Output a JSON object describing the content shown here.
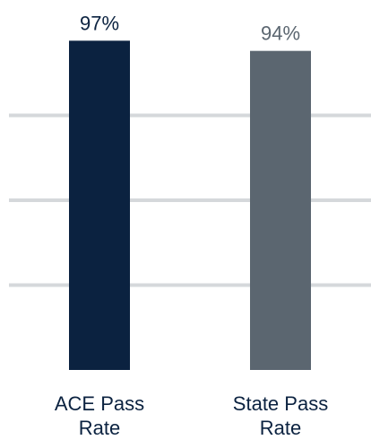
{
  "chart_data": {
    "type": "bar",
    "categories": [
      "ACE Pass Rate",
      "State Pass Rate"
    ],
    "values": [
      97,
      94
    ],
    "value_labels": [
      "97%",
      "94%"
    ],
    "colors": [
      "#0b2240",
      "#5b6670"
    ],
    "ylim": [
      0,
      100
    ],
    "yticks": [
      25,
      50,
      75
    ],
    "grid": true
  }
}
